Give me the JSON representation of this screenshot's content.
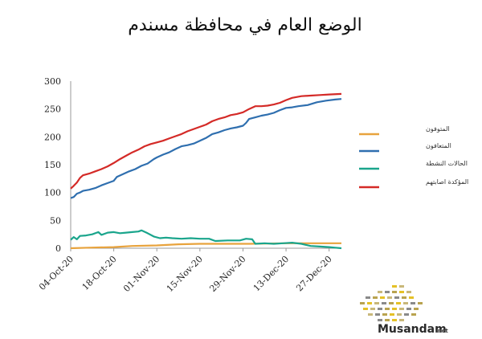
{
  "chart_data": {
    "type": "line",
    "title": "الوضع العام في محافظة مسندم",
    "xlabel": "",
    "ylabel": "",
    "x_tick_labels": [
      "04-Oct-20",
      "18-Oct-20",
      "01-Nov-20",
      "15-Nov-20",
      "29-Nov-20",
      "13-Dec-20",
      "27-Dec-20"
    ],
    "x_range": [
      "2020-10-04",
      "2020-12-31"
    ],
    "ylim": [
      0,
      300
    ],
    "y_ticks": [
      0,
      50,
      100,
      150,
      200,
      250,
      300
    ],
    "grid": false,
    "legend_position": "right",
    "series": [
      {
        "name": "المتوفون",
        "color": "#e8a33d",
        "points": [
          [
            "2020-10-04",
            0
          ],
          [
            "2020-10-10",
            1
          ],
          [
            "2020-10-18",
            2
          ],
          [
            "2020-10-24",
            4
          ],
          [
            "2020-11-01",
            5
          ],
          [
            "2020-11-08",
            7
          ],
          [
            "2020-11-15",
            8
          ],
          [
            "2020-11-25",
            8
          ],
          [
            "2020-12-01",
            8
          ],
          [
            "2020-12-13",
            9
          ],
          [
            "2020-12-25",
            9
          ],
          [
            "2020-12-31",
            9
          ]
        ]
      },
      {
        "name": "المتعافون",
        "color": "#2f6faf",
        "points": [
          [
            "2020-10-04",
            90
          ],
          [
            "2020-10-05",
            92
          ],
          [
            "2020-10-06",
            98
          ],
          [
            "2020-10-07",
            100
          ],
          [
            "2020-10-08",
            103
          ],
          [
            "2020-10-10",
            105
          ],
          [
            "2020-10-12",
            108
          ],
          [
            "2020-10-14",
            113
          ],
          [
            "2020-10-16",
            117
          ],
          [
            "2020-10-18",
            121
          ],
          [
            "2020-10-19",
            128
          ],
          [
            "2020-10-21",
            133
          ],
          [
            "2020-10-23",
            138
          ],
          [
            "2020-10-25",
            142
          ],
          [
            "2020-10-27",
            148
          ],
          [
            "2020-10-29",
            152
          ],
          [
            "2020-10-31",
            160
          ],
          [
            "2020-11-01",
            163
          ],
          [
            "2020-11-03",
            168
          ],
          [
            "2020-11-05",
            172
          ],
          [
            "2020-11-07",
            178
          ],
          [
            "2020-11-09",
            183
          ],
          [
            "2020-11-11",
            185
          ],
          [
            "2020-11-13",
            188
          ],
          [
            "2020-11-15",
            193
          ],
          [
            "2020-11-17",
            198
          ],
          [
            "2020-11-19",
            205
          ],
          [
            "2020-11-21",
            208
          ],
          [
            "2020-11-23",
            212
          ],
          [
            "2020-11-25",
            215
          ],
          [
            "2020-11-27",
            217
          ],
          [
            "2020-11-29",
            220
          ],
          [
            "2020-11-30",
            225
          ],
          [
            "2020-12-01",
            232
          ],
          [
            "2020-12-03",
            235
          ],
          [
            "2020-12-05",
            238
          ],
          [
            "2020-12-07",
            240
          ],
          [
            "2020-12-09",
            243
          ],
          [
            "2020-12-11",
            248
          ],
          [
            "2020-12-13",
            252
          ],
          [
            "2020-12-15",
            253
          ],
          [
            "2020-12-17",
            255
          ],
          [
            "2020-12-20",
            257
          ],
          [
            "2020-12-23",
            262
          ],
          [
            "2020-12-26",
            265
          ],
          [
            "2020-12-29",
            267
          ],
          [
            "2020-12-31",
            268
          ]
        ]
      },
      {
        "name": "الحالات النشطة",
        "color": "#1aa58c",
        "points": [
          [
            "2020-10-04",
            15
          ],
          [
            "2020-10-05",
            20
          ],
          [
            "2020-10-06",
            16
          ],
          [
            "2020-10-07",
            22
          ],
          [
            "2020-10-09",
            23
          ],
          [
            "2020-10-11",
            25
          ],
          [
            "2020-10-13",
            29
          ],
          [
            "2020-10-14",
            24
          ],
          [
            "2020-10-16",
            28
          ],
          [
            "2020-10-18",
            29
          ],
          [
            "2020-10-20",
            27
          ],
          [
            "2020-10-22",
            28
          ],
          [
            "2020-10-24",
            29
          ],
          [
            "2020-10-26",
            30
          ],
          [
            "2020-10-27",
            32
          ],
          [
            "2020-10-29",
            27
          ],
          [
            "2020-10-31",
            21
          ],
          [
            "2020-11-02",
            18
          ],
          [
            "2020-11-04",
            19
          ],
          [
            "2020-11-06",
            18
          ],
          [
            "2020-11-09",
            17
          ],
          [
            "2020-11-12",
            18
          ],
          [
            "2020-11-15",
            17
          ],
          [
            "2020-11-18",
            17
          ],
          [
            "2020-11-20",
            13
          ],
          [
            "2020-11-24",
            14
          ],
          [
            "2020-11-28",
            14
          ],
          [
            "2020-11-30",
            17
          ],
          [
            "2020-12-02",
            16
          ],
          [
            "2020-12-03",
            8
          ],
          [
            "2020-12-06",
            9
          ],
          [
            "2020-12-09",
            8
          ],
          [
            "2020-12-12",
            9
          ],
          [
            "2020-12-15",
            10
          ],
          [
            "2020-12-18",
            8
          ],
          [
            "2020-12-21",
            4
          ],
          [
            "2020-12-24",
            3
          ],
          [
            "2020-12-27",
            2
          ],
          [
            "2020-12-29",
            1
          ],
          [
            "2020-12-31",
            0
          ]
        ]
      },
      {
        "name": "المؤكدة اصابتهم",
        "color": "#d42a27",
        "points": [
          [
            "2020-10-04",
            107
          ],
          [
            "2020-10-05",
            112
          ],
          [
            "2020-10-06",
            118
          ],
          [
            "2020-10-07",
            126
          ],
          [
            "2020-10-08",
            131
          ],
          [
            "2020-10-10",
            134
          ],
          [
            "2020-10-12",
            138
          ],
          [
            "2020-10-14",
            142
          ],
          [
            "2020-10-16",
            147
          ],
          [
            "2020-10-18",
            153
          ],
          [
            "2020-10-20",
            160
          ],
          [
            "2020-10-22",
            166
          ],
          [
            "2020-10-24",
            172
          ],
          [
            "2020-10-26",
            177
          ],
          [
            "2020-10-28",
            183
          ],
          [
            "2020-10-30",
            187
          ],
          [
            "2020-11-01",
            190
          ],
          [
            "2020-11-03",
            193
          ],
          [
            "2020-11-05",
            197
          ],
          [
            "2020-11-07",
            201
          ],
          [
            "2020-11-09",
            205
          ],
          [
            "2020-11-11",
            210
          ],
          [
            "2020-11-13",
            214
          ],
          [
            "2020-11-15",
            218
          ],
          [
            "2020-11-17",
            222
          ],
          [
            "2020-11-19",
            228
          ],
          [
            "2020-11-21",
            232
          ],
          [
            "2020-11-23",
            235
          ],
          [
            "2020-11-25",
            239
          ],
          [
            "2020-11-27",
            241
          ],
          [
            "2020-11-29",
            244
          ],
          [
            "2020-12-01",
            250
          ],
          [
            "2020-12-03",
            255
          ],
          [
            "2020-12-05",
            255
          ],
          [
            "2020-12-07",
            256
          ],
          [
            "2020-12-09",
            258
          ],
          [
            "2020-12-11",
            261
          ],
          [
            "2020-12-13",
            266
          ],
          [
            "2020-12-15",
            270
          ],
          [
            "2020-12-18",
            273
          ],
          [
            "2020-12-21",
            274
          ],
          [
            "2020-12-24",
            275
          ],
          [
            "2020-12-27",
            276
          ],
          [
            "2020-12-31",
            277
          ]
        ]
      }
    ]
  },
  "watermark": {
    "text": "Musandam",
    "suffix": ".net",
    "colors": [
      "#e5c127",
      "#c9b87a",
      "#8a8a8a",
      "#b9a34f"
    ]
  }
}
